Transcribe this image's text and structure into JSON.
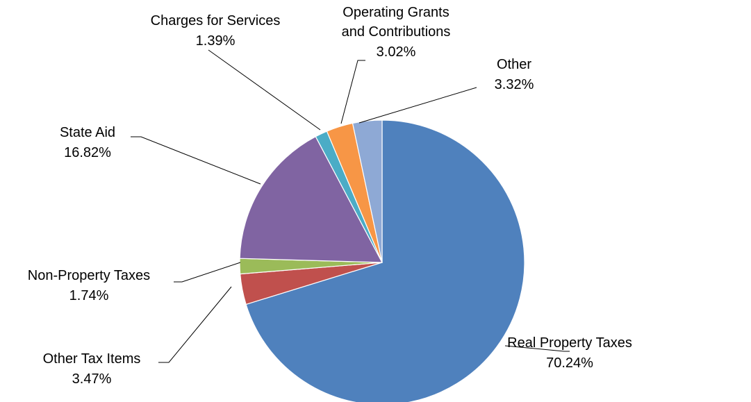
{
  "chart_data": {
    "type": "pie",
    "title": "",
    "slices": [
      {
        "label": "Real Property Taxes",
        "value": 70.24,
        "pct_label": "70.24%",
        "color": "#4F81BD"
      },
      {
        "label": "Other Tax Items",
        "value": 3.47,
        "pct_label": "3.47%",
        "color": "#C0504D"
      },
      {
        "label": "Non-Property Taxes",
        "value": 1.74,
        "pct_label": "1.74%",
        "color": "#9BBB59"
      },
      {
        "label": "State Aid",
        "value": 16.82,
        "pct_label": "16.82%",
        "color": "#8064A2"
      },
      {
        "label": "Charges for Services",
        "value": 1.39,
        "pct_label": "1.39%",
        "color": "#4BACC6"
      },
      {
        "label": "Operating Grants and Contributions",
        "label_lines": [
          "Operating Grants",
          "and Contributions"
        ],
        "value": 3.02,
        "pct_label": "3.02%",
        "color": "#F79646"
      },
      {
        "label": "Other",
        "value": 3.32,
        "pct_label": "3.32%",
        "color": "#8EA9D5"
      }
    ],
    "start_angle": "12 o'clock",
    "direction": "clockwise",
    "legend": "none",
    "data_labels": "outside with leader lines"
  }
}
